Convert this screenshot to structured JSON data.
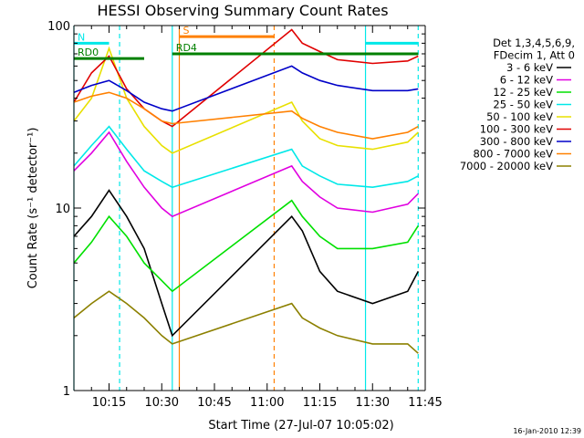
{
  "chart_data": {
    "type": "line",
    "title": "HESSI Observing Summary Count Rates",
    "xlabel": "Start Time (27-Jul-07 10:05:02)",
    "ylabel": "Count Rate (s⁻¹ detector⁻¹)",
    "xlim": [
      "10:05",
      "11:45"
    ],
    "ylim": [
      1,
      100
    ],
    "yscale": "log",
    "x_ticks": [
      "10:15",
      "10:30",
      "10:45",
      "11:00",
      "11:15",
      "11:30",
      "11:45"
    ],
    "y_ticks": [
      "1",
      "10",
      "100"
    ],
    "legend_header": [
      "Det 1,3,4,5,6,9,",
      "FDecim 1, Att 0"
    ],
    "legend_position": "right",
    "timestamp": "16-Jan-2010 12:39",
    "series": [
      {
        "name": "3 - 6 keV",
        "color": "#000000",
        "x": [
          "10:05",
          "10:10",
          "10:15",
          "10:20",
          "10:25",
          "10:30",
          "10:33",
          "11:07",
          "11:10",
          "11:15",
          "11:20",
          "11:30",
          "11:40",
          "11:43"
        ],
        "y": [
          7.0,
          9.0,
          12.5,
          9.0,
          6.0,
          3.0,
          2.0,
          9.0,
          7.5,
          4.5,
          3.5,
          3.0,
          3.5,
          4.5
        ]
      },
      {
        "name": "6 - 12 keV",
        "color": "#e000e0",
        "x": [
          "10:05",
          "10:10",
          "10:15",
          "10:20",
          "10:25",
          "10:30",
          "10:33",
          "11:07",
          "11:10",
          "11:15",
          "11:20",
          "11:30",
          "11:40",
          "11:43"
        ],
        "y": [
          16.0,
          20.0,
          26.0,
          18.0,
          13.0,
          10.0,
          9.0,
          17.0,
          14.0,
          11.5,
          10.0,
          9.5,
          10.5,
          12.0
        ]
      },
      {
        "name": "12 - 25 keV",
        "color": "#00e000",
        "x": [
          "10:05",
          "10:10",
          "10:15",
          "10:20",
          "10:25",
          "10:30",
          "10:33",
          "11:07",
          "11:10",
          "11:15",
          "11:20",
          "11:30",
          "11:40",
          "11:43"
        ],
        "y": [
          5.0,
          6.5,
          9.0,
          7.0,
          5.0,
          4.0,
          3.5,
          11.0,
          9.0,
          7.0,
          6.0,
          6.0,
          6.5,
          8.0
        ]
      },
      {
        "name": "25 - 50 keV",
        "color": "#00e8e8",
        "x": [
          "10:05",
          "10:10",
          "10:15",
          "10:20",
          "10:25",
          "10:30",
          "10:33",
          "11:07",
          "11:10",
          "11:15",
          "11:20",
          "11:30",
          "11:40",
          "11:43"
        ],
        "y": [
          17.0,
          22.0,
          28.0,
          21.0,
          16.0,
          14.0,
          13.0,
          21.0,
          17.0,
          15.0,
          13.5,
          13.0,
          14.0,
          15.0
        ]
      },
      {
        "name": "50 - 100 keV",
        "color": "#e8e000",
        "x": [
          "10:05",
          "10:10",
          "10:15",
          "10:20",
          "10:25",
          "10:30",
          "10:33",
          "11:07",
          "11:10",
          "11:15",
          "11:20",
          "11:30",
          "11:40",
          "11:43"
        ],
        "y": [
          30.0,
          40.0,
          75.0,
          40.0,
          28.0,
          22.0,
          20.0,
          38.0,
          30.0,
          24.0,
          22.0,
          21.0,
          23.0,
          26.0
        ]
      },
      {
        "name": "100 - 300 keV",
        "color": "#e00000",
        "x": [
          "10:05",
          "10:10",
          "10:15",
          "10:20",
          "10:25",
          "10:30",
          "10:33",
          "11:07",
          "11:10",
          "11:15",
          "11:20",
          "11:30",
          "11:40",
          "11:43"
        ],
        "y": [
          38.0,
          55.0,
          68.0,
          45.0,
          35.0,
          30.0,
          28.0,
          95.0,
          80.0,
          72.0,
          65.0,
          62.0,
          64.0,
          68.0
        ]
      },
      {
        "name": "300 - 800 keV",
        "color": "#0000c8",
        "x": [
          "10:05",
          "10:10",
          "10:15",
          "10:20",
          "10:25",
          "10:30",
          "10:33",
          "11:07",
          "11:10",
          "11:15",
          "11:20",
          "11:30",
          "11:40",
          "11:43"
        ],
        "y": [
          43.0,
          47.0,
          50.0,
          44.0,
          38.0,
          35.0,
          34.0,
          60.0,
          55.0,
          50.0,
          47.0,
          44.0,
          44.0,
          45.0
        ]
      },
      {
        "name": "800 - 7000 keV",
        "color": "#ff8000",
        "x": [
          "10:05",
          "10:10",
          "10:15",
          "10:20",
          "10:25",
          "10:30",
          "10:33",
          "11:07",
          "11:10",
          "11:15",
          "11:20",
          "11:30",
          "11:40",
          "11:43"
        ],
        "y": [
          38.0,
          41.0,
          43.0,
          40.0,
          35.0,
          30.0,
          29.0,
          34.0,
          31.0,
          28.0,
          26.0,
          24.0,
          26.0,
          28.0
        ]
      },
      {
        "name": "7000 - 20000 keV",
        "color": "#8c8000",
        "x": [
          "10:05",
          "10:10",
          "10:15",
          "10:20",
          "10:25",
          "10:30",
          "10:33",
          "11:07",
          "11:10",
          "11:15",
          "11:20",
          "11:30",
          "11:40",
          "11:43"
        ],
        "y": [
          2.5,
          3.0,
          3.5,
          3.0,
          2.5,
          2.0,
          1.8,
          3.0,
          2.5,
          2.2,
          2.0,
          1.8,
          1.8,
          1.6
        ]
      }
    ],
    "flags": [
      {
        "label": "N",
        "color": "#00e8e8",
        "y": 80,
        "segments": [
          [
            "10:05",
            "10:15"
          ],
          [
            "11:28",
            "11:43"
          ]
        ]
      },
      {
        "label": "RD0",
        "color": "#008000",
        "y": 66,
        "segments": [
          [
            "10:05",
            "10:25"
          ]
        ]
      },
      {
        "label": "RD4",
        "color": "#008000",
        "y": 70,
        "segments": [
          [
            "10:33",
            "11:43"
          ]
        ]
      },
      {
        "label": "S",
        "color": "#ff8000",
        "y": 87,
        "segments": [
          [
            "10:35",
            "11:02"
          ]
        ]
      }
    ],
    "vertical_lines": [
      {
        "x": "10:05",
        "color": "#00e8e8",
        "style": "solid"
      },
      {
        "x": "10:18",
        "color": "#00e8e8",
        "style": "dashed"
      },
      {
        "x": "10:33",
        "color": "#00e8e8",
        "style": "solid"
      },
      {
        "x": "10:35",
        "color": "#ff8000",
        "style": "solid"
      },
      {
        "x": "11:02",
        "color": "#ff8000",
        "style": "dashed"
      },
      {
        "x": "11:28",
        "color": "#00e8e8",
        "style": "solid"
      },
      {
        "x": "11:43",
        "color": "#00e8e8",
        "style": "dashed"
      }
    ]
  }
}
